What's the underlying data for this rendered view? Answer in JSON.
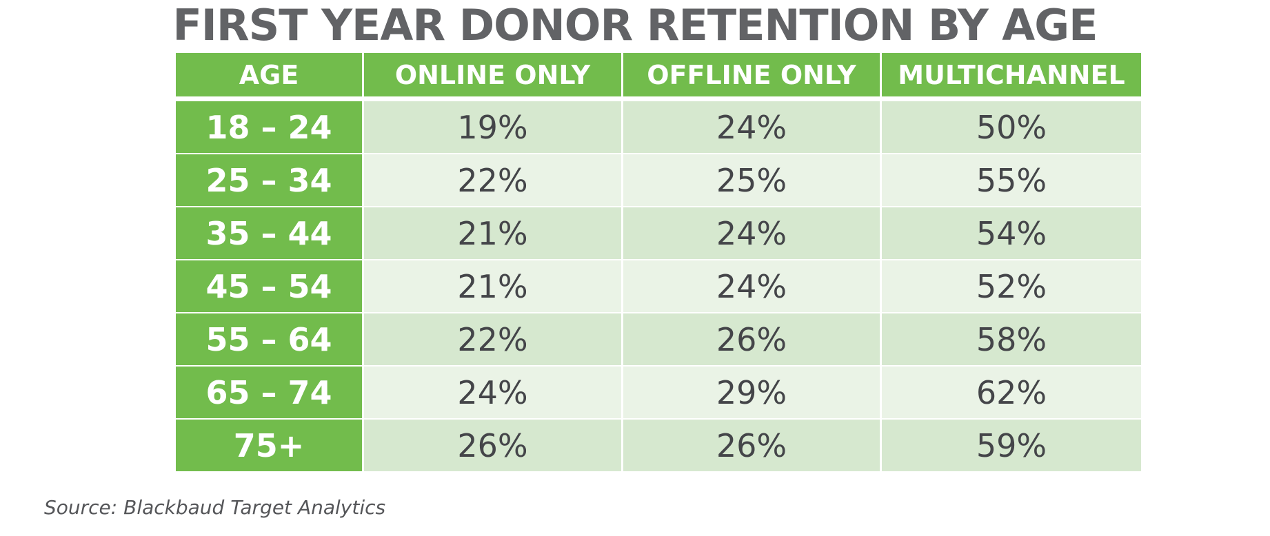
{
  "chart_data": {
    "type": "table",
    "title": "FIRST YEAR DONOR RETENTION BY AGE",
    "columns": [
      "AGE",
      "ONLINE ONLY",
      "OFFLINE ONLY",
      "MULTICHANNEL"
    ],
    "rows": [
      [
        "18 – 24",
        "19%",
        "24%",
        "50%"
      ],
      [
        "25 – 34",
        "22%",
        "25%",
        "55%"
      ],
      [
        "35 – 44",
        "21%",
        "24%",
        "54%"
      ],
      [
        "45 – 54",
        "21%",
        "24%",
        "52%"
      ],
      [
        "55 – 64",
        "22%",
        "26%",
        "58%"
      ],
      [
        "65 – 74",
        "24%",
        "29%",
        "62%"
      ],
      [
        "75+",
        "26%",
        "26%",
        "59%"
      ]
    ],
    "source": "Source: Blackbaud Target Analytics",
    "colors": {
      "header_bg": "#72bc4c",
      "header_text": "#ffffff",
      "row_odd_bg": "#d6e8cf",
      "row_even_bg": "#eaf3e6",
      "value_text": "#444549",
      "title_text": "#626366"
    }
  }
}
